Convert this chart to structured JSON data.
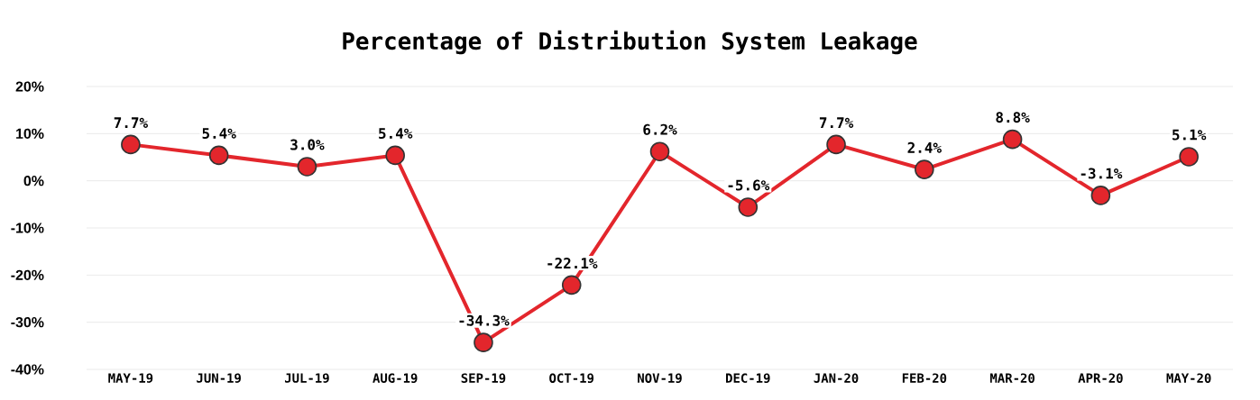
{
  "chart_data": {
    "type": "line",
    "title": "Percentage of Distribution System Leakage",
    "categories": [
      "MAY-19",
      "JUN-19",
      "JUL-19",
      "AUG-19",
      "SEP-19",
      "OCT-19",
      "NOV-19",
      "DEC-19",
      "JAN-20",
      "FEB-20",
      "MAR-20",
      "APR-20",
      "MAY-20"
    ],
    "values": [
      7.7,
      5.4,
      3.0,
      5.4,
      -34.3,
      -22.1,
      6.2,
      -5.6,
      7.7,
      2.4,
      8.8,
      -3.1,
      5.1
    ],
    "value_labels": [
      "7.7%",
      "5.4%",
      "3.0%",
      "5.4%",
      "-34.3%",
      "-22.1%",
      "6.2%",
      "-5.6%",
      "7.7%",
      "2.4%",
      "8.8%",
      "-3.1%",
      "5.1%"
    ],
    "color": "#e3262c",
    "marker": "circle",
    "line_style": "solid",
    "grid": "y",
    "ylim": [
      -40,
      20
    ],
    "yticks": [
      {
        "value": 20,
        "label": "20%"
      },
      {
        "value": 10,
        "label": "10%"
      },
      {
        "value": 0,
        "label": "0%"
      },
      {
        "value": -10,
        "label": "-10%"
      },
      {
        "value": -20,
        "label": "-20%"
      },
      {
        "value": -30,
        "label": "-30%"
      },
      {
        "value": -40,
        "label": "-40%"
      }
    ]
  }
}
